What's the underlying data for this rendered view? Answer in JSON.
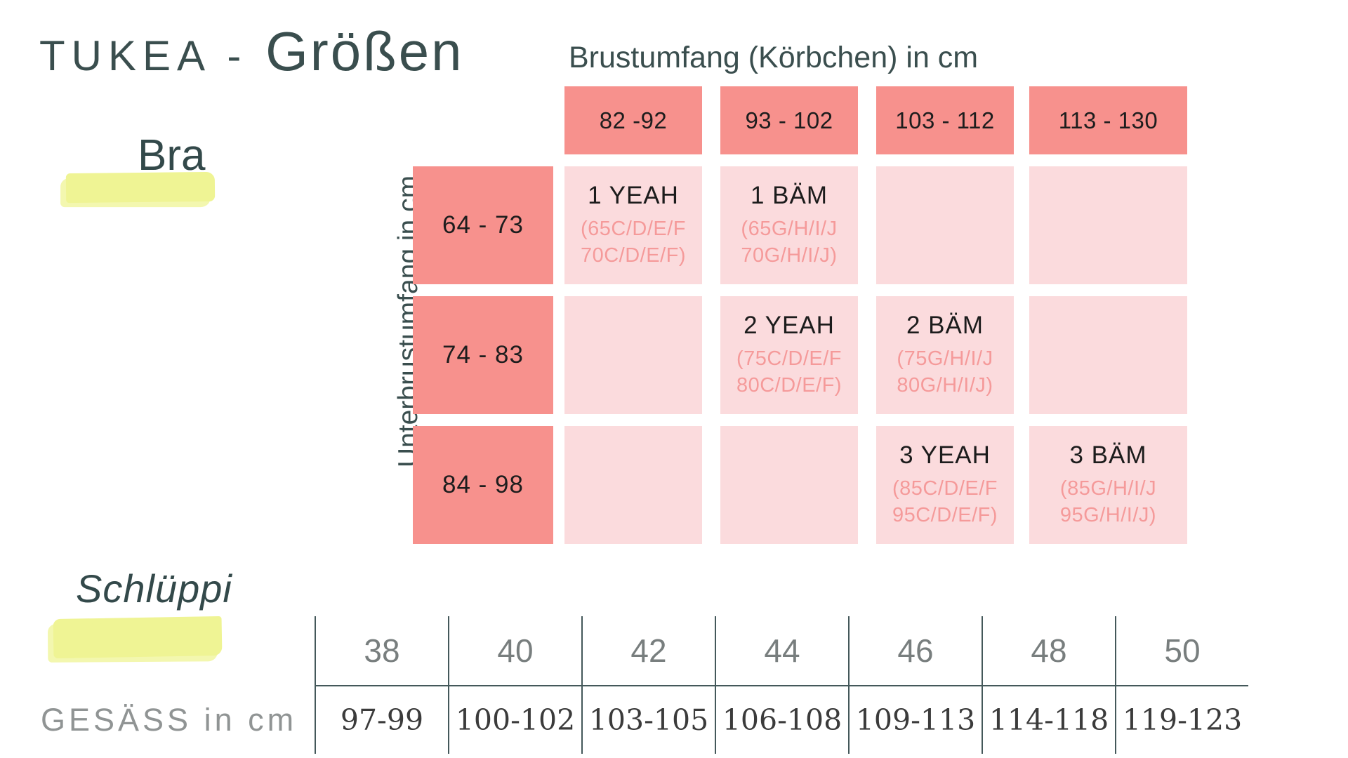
{
  "page": {
    "title_prefix": "TUKEA - ",
    "title_main": "Größen",
    "bra_section_label": "Bra",
    "panty_section_label": "Schlüppi"
  },
  "colors": {
    "dark_teal_text": "#3a4e4e",
    "salmon_header": "#f7918d",
    "light_pink_cell": "#fbdbdd",
    "pink_subtext": "#f59a9a",
    "yellow_highlight": "#eff494",
    "table_line": "#44585a",
    "gray_label": "#909494"
  },
  "bra": {
    "col_axis_title": "Brustumfang (Körbchen) in cm",
    "row_axis_title": "Unterbrustumfang in cm",
    "col_headers": [
      "82 -92",
      "93 - 102",
      "103 - 112",
      "113 - 130"
    ],
    "row_headers": [
      "64 - 73",
      "74 - 83",
      "84 - 98"
    ],
    "cells": [
      [
        {
          "name": "1 YEAH",
          "sub1": "(65C/D/E/F",
          "sub2": "70C/D/E/F)"
        },
        {
          "name": "1 BÄM",
          "sub1": "(65G/H/I/J",
          "sub2": "70G/H/I/J)"
        },
        null,
        null
      ],
      [
        null,
        {
          "name": "2 YEAH",
          "sub1": "(75C/D/E/F",
          "sub2": "80C/D/E/F)"
        },
        {
          "name": "2 BÄM",
          "sub1": "(75G/H/I/J",
          "sub2": "80G/H/I/J)"
        },
        null
      ],
      [
        null,
        null,
        {
          "name": "3 YEAH",
          "sub1": "(85C/D/E/F",
          "sub2": "95C/D/E/F)"
        },
        {
          "name": "3 BÄM",
          "sub1": "(85G/H/I/J",
          "sub2": "95G/H/I/J)"
        }
      ]
    ]
  },
  "panty": {
    "row_label": "GESÄSS in cm",
    "sizes": [
      "38",
      "40",
      "42",
      "44",
      "46",
      "48",
      "50"
    ],
    "values": [
      "97-99",
      "100-102",
      "103-105",
      "106-108",
      "109-113",
      "114-118",
      "119-123"
    ]
  },
  "chart_data": [
    {
      "type": "table",
      "title": "Bra sizes",
      "x_axis_label": "Brustumfang (Körbchen) in cm",
      "y_axis_label": "Unterbrustumfang in cm",
      "columns": [
        "82 -92",
        "93 - 102",
        "103 - 112",
        "113 - 130"
      ],
      "rows": [
        "64 - 73",
        "74 - 83",
        "84 - 98"
      ],
      "cells": [
        [
          "1 YEAH (65C/D/E/F 70C/D/E/F)",
          "1 BÄM (65G/H/I/J 70G/H/I/J)",
          "",
          ""
        ],
        [
          "",
          "2 YEAH (75C/D/E/F 80C/D/E/F)",
          "2 BÄM (75G/H/I/J 80G/H/I/J)",
          ""
        ],
        [
          "",
          "",
          "3 YEAH (85C/D/E/F 95C/D/E/F)",
          "3 BÄM (85G/H/I/J 95G/H/I/J)"
        ]
      ]
    },
    {
      "type": "table",
      "title": "Schlüppi sizes",
      "columns": [
        "38",
        "40",
        "42",
        "44",
        "46",
        "48",
        "50"
      ],
      "rows": [
        "GESÄSS in cm"
      ],
      "cells": [
        [
          "97-99",
          "100-102",
          "103-105",
          "106-108",
          "109-113",
          "114-118",
          "119-123"
        ]
      ]
    }
  ]
}
